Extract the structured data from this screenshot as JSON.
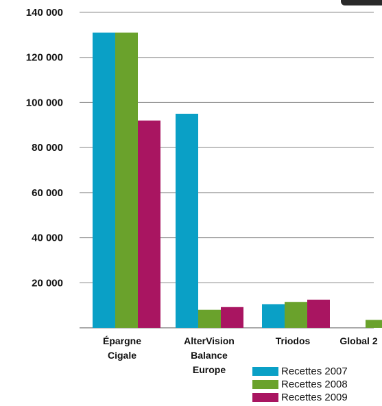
{
  "chart_data": {
    "type": "bar",
    "title": "",
    "xlabel": "",
    "ylabel": "",
    "ylim": [
      0,
      140000
    ],
    "yticks": [
      20000,
      40000,
      60000,
      80000,
      100000,
      120000,
      140000
    ],
    "ytick_labels": [
      "20 000",
      "40 000",
      "60 000",
      "80 000",
      "100 000",
      "120 000",
      "140 000"
    ],
    "grid": "horizontal",
    "legend_position": "bottom-right",
    "categories": [
      [
        "Épargne",
        "Cigale"
      ],
      [
        "AlterVision",
        "Balance",
        "Europe"
      ],
      [
        "Triodos"
      ],
      [
        "Global 2"
      ]
    ],
    "series": [
      {
        "name": "Recettes 2007",
        "color": "#0aa0c6",
        "values": [
          131000,
          95000,
          10500,
          0
        ]
      },
      {
        "name": "Recettes 2008",
        "color": "#6aa22c",
        "values": [
          131000,
          8000,
          11500,
          3500
        ]
      },
      {
        "name": "Recettes 2009",
        "color": "#a91561",
        "values": [
          92000,
          9200,
          12500,
          0
        ]
      }
    ]
  }
}
